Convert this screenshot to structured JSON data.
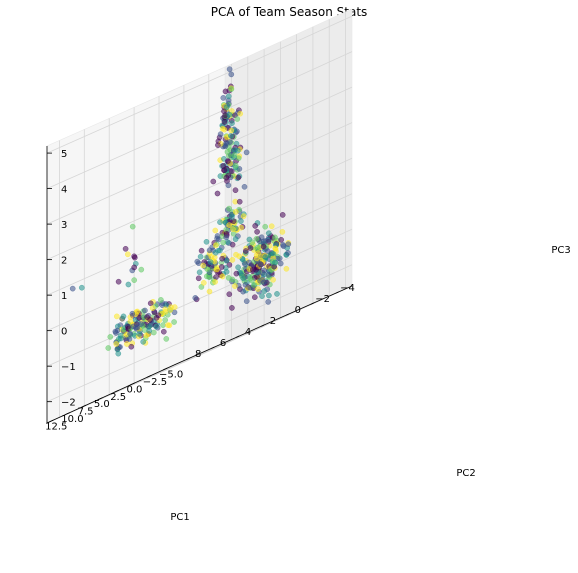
{
  "chart_data": {
    "type": "scatter",
    "projection": "3d",
    "title": "PCA of Team Season Stats",
    "xlabel": "PC1",
    "ylabel": "PC2",
    "zlabel": "PC3",
    "xlim": [
      -5.3,
      9.0
    ],
    "ylim": [
      -6.0,
      13.5
    ],
    "zlim": [
      -2.6,
      5.2
    ],
    "xticks": [
      -4,
      -2,
      0,
      2,
      4,
      6,
      8
    ],
    "xtick_labels": [
      "−4",
      "−2",
      "0",
      "2",
      "4",
      "6",
      "8"
    ],
    "yticks": [
      -5.0,
      -2.5,
      0.0,
      2.5,
      5.0,
      7.5,
      10.0,
      12.5
    ],
    "ytick_labels": [
      "−5.0",
      "−2.5",
      "0.0",
      "2.5",
      "5.0",
      "7.5",
      "10.0",
      "12.5"
    ],
    "zticks": [
      -2,
      -1,
      0,
      1,
      2,
      3,
      4,
      5
    ],
    "ztick_labels": [
      "−2",
      "−1",
      "0",
      "1",
      "2",
      "3",
      "4",
      "5"
    ],
    "grid": true,
    "legend": false,
    "colormap": [
      "#440154",
      "#3b528b",
      "#21918c",
      "#5ec962",
      "#fde725"
    ],
    "point_alpha": 0.55,
    "clusters": [
      {
        "count": 240,
        "center": [
          -1.2,
          0.3,
          -0.8
        ],
        "spread": [
          0.9,
          1.0,
          0.45
        ]
      },
      {
        "count": 90,
        "center": [
          -0.5,
          3.5,
          2.6
        ],
        "spread": [
          0.35,
          0.6,
          0.6
        ]
      },
      {
        "count": 45,
        "center": [
          -0.6,
          4.0,
          3.8
        ],
        "spread": [
          0.2,
          0.4,
          0.45
        ]
      },
      {
        "count": 70,
        "center": [
          1.3,
          2.8,
          -0.3
        ],
        "spread": [
          0.6,
          0.7,
          0.35
        ]
      },
      {
        "count": 60,
        "center": [
          1.6,
          -0.3,
          0.6
        ],
        "spread": [
          0.5,
          0.8,
          0.3
        ]
      },
      {
        "count": 150,
        "center": [
          6.5,
          3.8,
          -1.0
        ],
        "spread": [
          0.35,
          0.45,
          0.25
        ],
        "elongated": true,
        "along": [
          -1.0,
          -3.0,
          0.0
        ],
        "half_length": 2.6
      },
      {
        "count": 12,
        "center": [
          4.8,
          8.0,
          0.7
        ],
        "spread": [
          0.4,
          0.6,
          0.3
        ]
      },
      {
        "count": 2,
        "center": [
          8.6,
          9.8,
          0.9
        ],
        "spread": [
          0.15,
          0.4,
          0.1
        ]
      }
    ]
  }
}
